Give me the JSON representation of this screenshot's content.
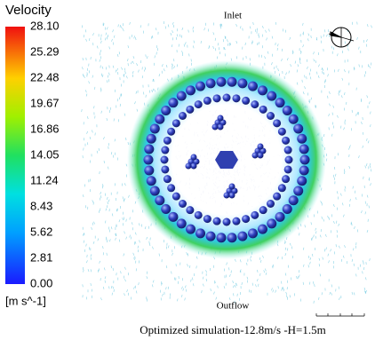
{
  "legend": {
    "title": "Velocity",
    "labels": [
      "28.10",
      "25.29",
      "22.48",
      "19.67",
      "16.86",
      "14.05",
      "11.24",
      "8.43",
      "5.62",
      "2.81",
      "0.00"
    ],
    "unit": "[m s^-1]"
  },
  "inlet": "Inlet",
  "outflow": "Outflow",
  "caption": "Optimized simulation-12.8m/s -H=1.5m"
}
